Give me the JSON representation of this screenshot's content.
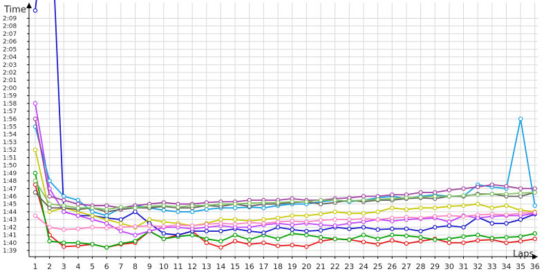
{
  "chart_data": {
    "type": "line",
    "ylabel": "Time",
    "xlabel": "Laps",
    "x": [
      1,
      2,
      3,
      4,
      5,
      6,
      7,
      8,
      9,
      10,
      11,
      12,
      13,
      14,
      15,
      16,
      17,
      18,
      19,
      20,
      21,
      22,
      23,
      24,
      25,
      26,
      27,
      28,
      29,
      30,
      31,
      32,
      33,
      34,
      35,
      36
    ],
    "x_tick_labels": [
      "1",
      "2",
      "3",
      "4",
      "5",
      "6",
      "7",
      "8",
      "9",
      "10",
      "11",
      "12",
      "13",
      "14",
      "15",
      "16",
      "17",
      "18",
      "19",
      "20",
      "21",
      "22",
      "23",
      "24",
      "25",
      "26",
      "27",
      "28",
      "29",
      "30",
      "31",
      "32",
      "33",
      "34",
      "35",
      "36"
    ],
    "y_unit": "seconds",
    "y_tick_values": [
      99,
      100,
      101,
      102,
      103,
      104,
      105,
      106,
      107,
      108,
      109,
      110,
      111,
      112,
      113,
      114,
      115,
      116,
      117,
      118,
      119,
      120,
      121,
      122,
      123,
      124,
      125,
      126,
      127,
      128,
      129
    ],
    "y_tick_labels": [
      "1:39",
      "1:40",
      "1:41",
      "1:42",
      "1:43",
      "1:44",
      "1:45",
      "1:46",
      "1:47",
      "1:48",
      "1:49",
      "1:50",
      "1:51",
      "1:52",
      "1:53",
      "1:54",
      "1:55",
      "1:56",
      "1:57",
      "1:58",
      "1:59",
      "2:00",
      "2:01",
      "2:02",
      "2:03",
      "2:04",
      "2:05",
      "2:06",
      "2:07",
      "2:08",
      "2:09"
    ],
    "ylim": [
      98.2,
      131
    ],
    "grid": true,
    "series": [
      {
        "color": "#e31a1c",
        "values": [
          107.5,
          101,
          99.5,
          99.6,
          99.8,
          99.4,
          99.8,
          100,
          101.5,
          100.5,
          101,
          101.5,
          100,
          99.4,
          100.2,
          99.8,
          100,
          99.6,
          99.7,
          99.5,
          100.2,
          100.5,
          100.4,
          100.1,
          99.8,
          100.3,
          99.9,
          100.2,
          100.5,
          100,
          100,
          100.3,
          100.4,
          100,
          100.2,
          100.5
        ]
      },
      {
        "color": "#00a000",
        "values": [
          109,
          100.2,
          100,
          100,
          99.8,
          99.4,
          99.9,
          100.2,
          101.5,
          100.5,
          100.8,
          101,
          100.5,
          100.2,
          101,
          100.4,
          101,
          100.5,
          101.2,
          101,
          100.7,
          100.5,
          100.4,
          101,
          100.5,
          101,
          100.9,
          100.7,
          100.4,
          100.5,
          100.8,
          101,
          100.6,
          100.7,
          100.8,
          101.2
        ]
      },
      {
        "color": "#1515c8",
        "values": [
          130,
          147,
          104,
          103.5,
          103.5,
          103.2,
          103,
          104,
          102.5,
          101.2,
          101,
          101.5,
          101.5,
          101.5,
          101.8,
          101.5,
          101.3,
          102,
          101.7,
          101.5,
          101.6,
          102,
          101.8,
          102,
          101.7,
          101.8,
          101.8,
          101.5,
          102,
          102.2,
          102,
          103.3,
          102.5,
          102.5,
          103,
          103.7
        ]
      },
      {
        "color": "#c040ff",
        "values": [
          118,
          107,
          104,
          103.5,
          103,
          102.5,
          101.5,
          101,
          101.5,
          102,
          102,
          101.8,
          102,
          102.2,
          102,
          102,
          102.3,
          102.5,
          102.3,
          102.5,
          102.3,
          102.2,
          102.5,
          102.7,
          103,
          102.8,
          103,
          103.1,
          103.2,
          102.7,
          103.5,
          103.2,
          103.4,
          103.5,
          103.5,
          103.8
        ]
      },
      {
        "color": "#c8c800",
        "values": [
          112,
          104,
          104.5,
          104,
          103.5,
          103,
          102.5,
          102,
          103,
          102.7,
          102.5,
          102.2,
          102.5,
          103,
          103,
          102.8,
          103,
          103.2,
          103.5,
          103.5,
          103.7,
          104,
          103.8,
          103.8,
          104,
          104.5,
          104.3,
          104.5,
          104.5,
          104.7,
          104.8,
          105,
          104.5,
          104.8,
          104.2,
          104
        ]
      },
      {
        "color": "#1aa0e0",
        "values": [
          115,
          108,
          106,
          105.5,
          104,
          103.5,
          104.5,
          104.8,
          104.5,
          104.2,
          104,
          104,
          104.3,
          104.5,
          104.5,
          104.6,
          104.5,
          104.8,
          105,
          105,
          105.3,
          105.5,
          105.3,
          105.5,
          105.8,
          106,
          105.7,
          106,
          106.2,
          106,
          106,
          107.5,
          107.2,
          107,
          116,
          104.8
        ]
      },
      {
        "color": "#606060",
        "values": [
          106.5,
          104.5,
          104.5,
          104.3,
          104.5,
          104,
          104.3,
          104.5,
          104.5,
          104.7,
          104.5,
          104.5,
          104.8,
          104.7,
          105,
          104.7,
          105,
          105,
          105.2,
          105.3,
          105,
          105.2,
          105.5,
          105.3,
          105.5,
          105.5,
          105.7,
          105.8,
          105.7,
          106,
          106,
          106.3,
          106.3,
          106,
          106,
          106.5
        ]
      },
      {
        "color": "#a040a0",
        "values": [
          116,
          106,
          105.5,
          105,
          104.8,
          104.8,
          104.5,
          104.8,
          105,
          105.2,
          105,
          105,
          105.2,
          105.3,
          105.3,
          105.5,
          105.5,
          105.5,
          105.7,
          105.5,
          105.5,
          105.7,
          105.8,
          106,
          106,
          106.2,
          106.2,
          106.5,
          106.5,
          106.8,
          107,
          107.2,
          107.5,
          107.3,
          107,
          107
        ]
      },
      {
        "color": "#80c060",
        "values": [
          108,
          105,
          104.8,
          104.5,
          104.5,
          104.3,
          104.6,
          104.5,
          104.7,
          104.8,
          104.6,
          104.8,
          104.8,
          105,
          105,
          105.1,
          105.2,
          105.2,
          105.3,
          105.3,
          105.5,
          105.5,
          105.4,
          105.5,
          105.6,
          105.7,
          105.8,
          105.9,
          106,
          106,
          106.1,
          106.2,
          106.3,
          106.3,
          106.4,
          106.5
        ]
      },
      {
        "color": "#ff80c0",
        "values": [
          103.5,
          102,
          101.7,
          101.8,
          102,
          101.9,
          102,
          102.1,
          102.2,
          102.1,
          102.3,
          102.2,
          102.4,
          102.5,
          102.4,
          102.6,
          102.5,
          102.7,
          102.8,
          102.7,
          102.9,
          103,
          103,
          103.1,
          103,
          103.2,
          103.3,
          103.2,
          103.4,
          103.5,
          103.4,
          103.6,
          103.7,
          103.6,
          103.8,
          103.9
        ]
      }
    ]
  }
}
